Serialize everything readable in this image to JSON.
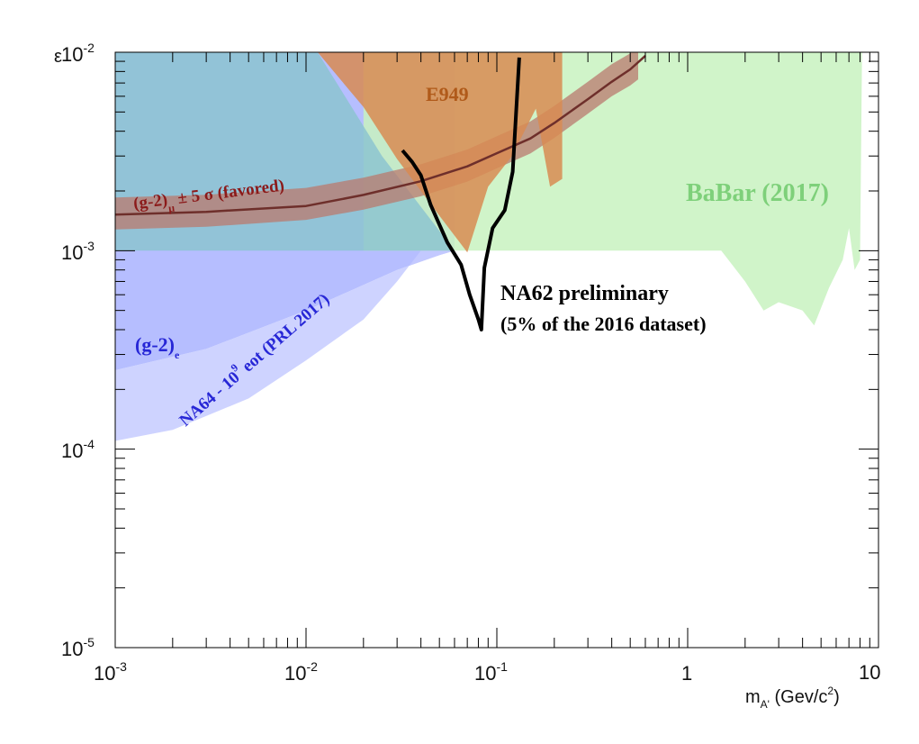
{
  "chart_data": {
    "type": "area",
    "title": "",
    "xlabel": {
      "main": "m",
      "sub": "A'",
      "unit": " (Gev/c",
      "sup": "2",
      "close": ")"
    },
    "ylabel": "ε",
    "xscale": "log",
    "yscale": "log",
    "xlim": [
      0.001,
      10
    ],
    "ylim": [
      1e-05,
      0.01
    ],
    "x_ticks": [
      {
        "base": "10",
        "exp": "-3",
        "value": 0.001
      },
      {
        "base": "10",
        "exp": "-2",
        "value": 0.01
      },
      {
        "base": "10",
        "exp": "-1",
        "value": 0.1
      },
      {
        "base": "1",
        "exp": "",
        "value": 1
      },
      {
        "base": "10",
        "exp": "",
        "value": 10
      }
    ],
    "y_ticks": [
      {
        "base": "10",
        "exp": "-5",
        "value": 1e-05
      },
      {
        "base": "10",
        "exp": "-4",
        "value": 0.0001
      },
      {
        "base": "10",
        "exp": "-3",
        "value": 0.001
      },
      {
        "base": "10",
        "exp": "-2",
        "value": 0.01
      }
    ],
    "regions": [
      {
        "name": "(g-2)e",
        "color": "#a9b3ff",
        "points": [
          [
            0.001,
            0.00025
          ],
          [
            0.003,
            0.00032
          ],
          [
            0.01,
            0.0005
          ],
          [
            0.03,
            0.0008
          ],
          [
            0.05,
            0.00095
          ],
          [
            0.06,
            0.001
          ],
          [
            0.06,
            0.01
          ],
          [
            0.001,
            0.01
          ]
        ]
      },
      {
        "name": "NA64 - 10^9 eot (PRL 2017)",
        "color": "#c5cbff",
        "points": [
          [
            0.001,
            0.00011
          ],
          [
            0.002,
            0.000125
          ],
          [
            0.005,
            0.00018
          ],
          [
            0.01,
            0.00028
          ],
          [
            0.02,
            0.00045
          ],
          [
            0.03,
            0.0007
          ],
          [
            0.04,
            0.001
          ],
          [
            0.05,
            0.0015
          ],
          [
            0.06,
            0.002
          ],
          [
            0.06,
            0.001
          ],
          [
            0.05,
            0.00095
          ],
          [
            0.03,
            0.0008
          ],
          [
            0.01,
            0.0005
          ],
          [
            0.003,
            0.00032
          ],
          [
            0.001,
            0.00025
          ]
        ]
      },
      {
        "name": "BaBar (2017)",
        "color": "#c8f2c0",
        "points": [
          [
            0.02,
            0.001
          ],
          [
            1.5,
            0.001
          ],
          [
            2,
            0.0007
          ],
          [
            2.5,
            0.0005
          ],
          [
            3,
            0.00055
          ],
          [
            4,
            0.0005
          ],
          [
            4.6,
            0.00042
          ],
          [
            5.5,
            0.00065
          ],
          [
            6.5,
            0.0009
          ],
          [
            7,
            0.0013
          ],
          [
            7.5,
            0.0008
          ],
          [
            8,
            0.0009
          ],
          [
            8.2,
            0.01
          ],
          [
            0.02,
            0.01
          ]
        ]
      },
      {
        "name": "teal-excluded",
        "color": "#8cc4d0",
        "points": [
          [
            0.001,
            0.001
          ],
          [
            0.06,
            0.001
          ],
          [
            0.025,
            0.003
          ],
          [
            0.0115,
            0.01
          ],
          [
            0.001,
            0.01
          ]
        ]
      },
      {
        "name": "(g-2)mu band",
        "color": "#b97a6e",
        "points": [
          [
            0.001,
            0.00179
          ],
          [
            0.003,
            0.00184
          ],
          [
            0.01,
            0.00198
          ],
          [
            0.02,
            0.00225
          ],
          [
            0.04,
            0.00263
          ],
          [
            0.07,
            0.00311
          ],
          [
            0.1,
            0.00364
          ],
          [
            0.15,
            0.00432
          ],
          [
            0.2,
            0.0052
          ],
          [
            0.3,
            0.0068
          ],
          [
            0.4,
            0.0083
          ],
          [
            0.5,
            0.0095
          ],
          [
            0.55,
            0.01
          ],
          [
            0.4,
            0.01
          ],
          [
            0.3,
            0.0084
          ],
          [
            0.2,
            0.0063
          ],
          [
            0.15,
            0.00505
          ],
          [
            0.1,
            0.00418
          ],
          [
            0.07,
            0.00357
          ],
          [
            0.04,
            0.00297
          ],
          [
            0.02,
            0.00257
          ],
          [
            0.01,
            0.00226
          ],
          [
            0.003,
            0.00209
          ],
          [
            0.001,
            0.00203
          ]
        ],
        "lower": [
          [
            0.001,
            0.00128
          ],
          [
            0.003,
            0.00132
          ],
          [
            0.01,
            0.00143
          ],
          [
            0.02,
            0.00161
          ],
          [
            0.04,
            0.00188
          ],
          [
            0.07,
            0.00223
          ],
          [
            0.1,
            0.0026
          ],
          [
            0.15,
            0.00309
          ],
          [
            0.2,
            0.0037
          ],
          [
            0.3,
            0.0049
          ],
          [
            0.4,
            0.006
          ],
          [
            0.5,
            0.0068
          ],
          [
            0.55,
            0.0073
          ]
        ]
      },
      {
        "name": "E949",
        "color": "#d88b52",
        "points": [
          [
            0.0115,
            0.01
          ],
          [
            0.02,
            0.0053
          ],
          [
            0.03,
            0.0029
          ],
          [
            0.05,
            0.0015
          ],
          [
            0.07,
            0.00098
          ],
          [
            0.09,
            0.0021
          ],
          [
            0.12,
            0.003
          ],
          [
            0.16,
            0.0052
          ],
          [
            0.19,
            0.0021
          ],
          [
            0.22,
            0.0023
          ],
          [
            0.22,
            0.01
          ]
        ]
      }
    ],
    "series": [
      {
        "name": "(g-2)μ ± 5 σ (favored)",
        "color": "#6e2f2b",
        "x": [
          0.001,
          0.003,
          0.01,
          0.02,
          0.04,
          0.07,
          0.1,
          0.15,
          0.2,
          0.3,
          0.4,
          0.5,
          0.6
        ],
        "y": [
          0.00152,
          0.00157,
          0.00168,
          0.00191,
          0.00224,
          0.00266,
          0.0031,
          0.00368,
          0.0044,
          0.0058,
          0.0071,
          0.0082,
          0.0096
        ]
      },
      {
        "name": "NA62 preliminary",
        "color": "#000000",
        "x": [
          0.032,
          0.036,
          0.04,
          0.045,
          0.055,
          0.065,
          0.072,
          0.08,
          0.083,
          0.086,
          0.095,
          0.11,
          0.121,
          0.131
        ],
        "y": [
          0.0032,
          0.0028,
          0.0024,
          0.0017,
          0.0011,
          0.00085,
          0.0006,
          0.00045,
          0.0004,
          0.00082,
          0.0013,
          0.0016,
          0.0025,
          0.0094
        ]
      }
    ],
    "annotations": {
      "e949": "E949",
      "babar": "BaBar (2017)",
      "na62_line1": "NA62 preliminary",
      "na62_line2": "(5% of the 2016 dataset)",
      "g2e_main": "(g-2)",
      "g2e_sub": "e",
      "g2mu_a": "(g-2)",
      "g2mu_sub": "μ",
      "g2mu_b": " ± 5  σ (favored)",
      "na64_a": "NA64 - 10",
      "na64_exp": "9",
      "na64_b": " eot (PRL 2017)"
    },
    "colors": {
      "axis": "#000000",
      "label_g2mu": "#8b1a1a",
      "label_e949": "#b05a1a",
      "label_babar": "#7ed07a",
      "label_blue": "#2727d6",
      "label_na62": "#000000"
    }
  }
}
